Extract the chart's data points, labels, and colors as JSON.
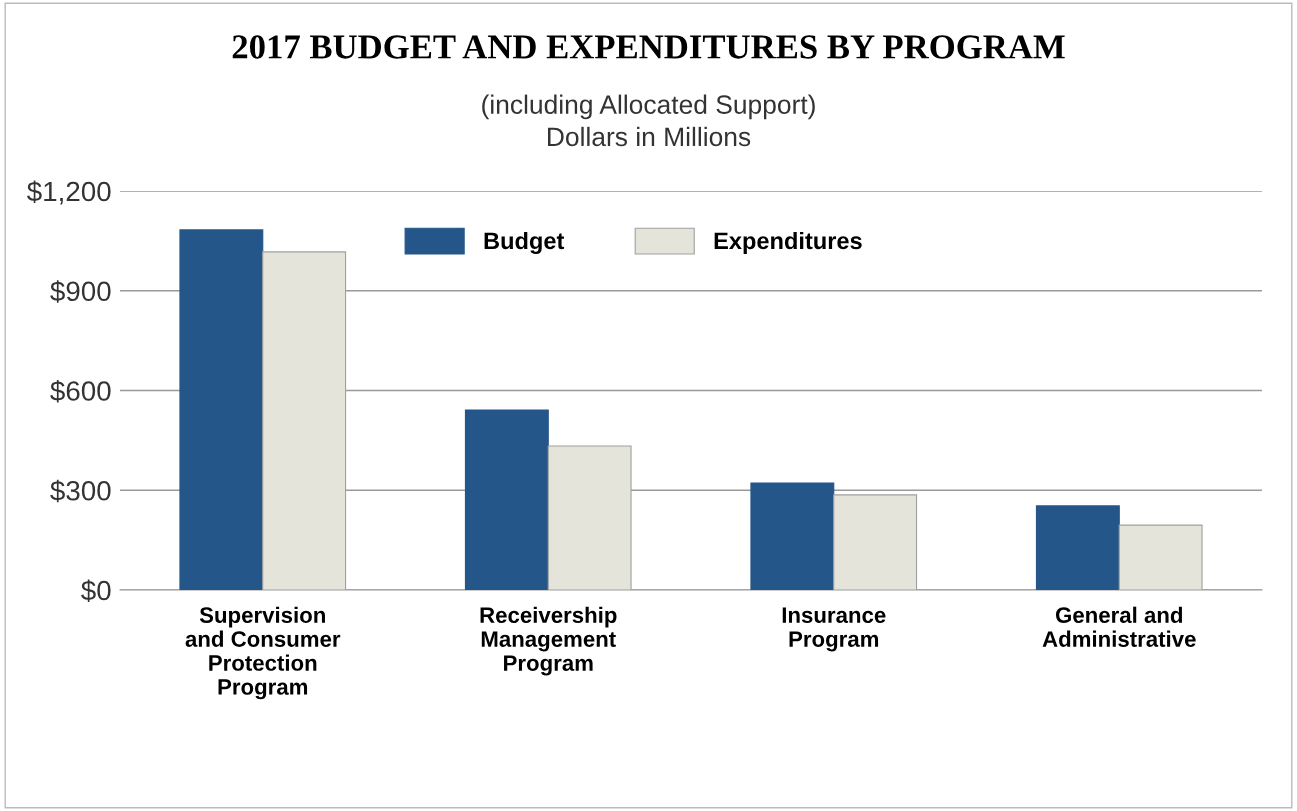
{
  "chart_data": {
    "type": "bar",
    "title": "2017 BUDGET AND EXPENDITURES BY PROGRAM",
    "subtitle": "(including Allocated Support)\nDollars in Millions",
    "categories": [
      "Supervision\nand Consumer\nProtection\nProgram",
      "Receivership\nManagement\nProgram",
      "Insurance\nProgram",
      "General and\nAdministrative"
    ],
    "series": [
      {
        "name": "Budget",
        "color": "#24568a",
        "values": [
          1083,
          541,
          322,
          253
        ]
      },
      {
        "name": "Expenditures",
        "color": "#e5e4da",
        "values": [
          1017,
          433,
          286,
          195
        ]
      }
    ],
    "ylim": [
      0,
      1200
    ],
    "yticks": [
      {
        "value": 0,
        "label": "$0"
      },
      {
        "value": 300,
        "label": "$300"
      },
      {
        "value": 600,
        "label": "$600"
      },
      {
        "value": 900,
        "label": "$900"
      },
      {
        "value": 1200,
        "label": "$1,200"
      }
    ],
    "grid": "y",
    "legend": "top"
  }
}
